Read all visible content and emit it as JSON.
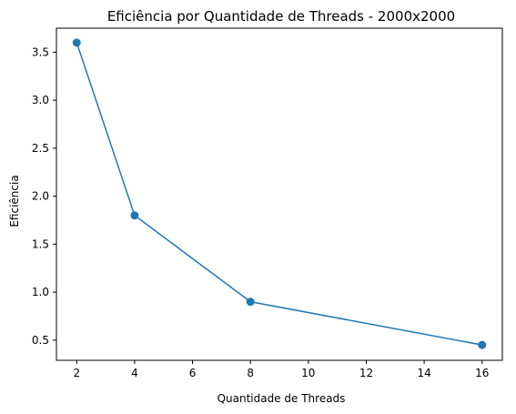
{
  "chart_data": {
    "type": "line",
    "title": "Eficiência por Quantidade de Threads - 2000x2000",
    "xlabel": "Quantidade de Threads",
    "ylabel": "Eficiência",
    "xlim": [
      1.3,
      16.7
    ],
    "ylim": [
      0.29,
      3.75
    ],
    "xticks": [
      2,
      4,
      6,
      8,
      10,
      12,
      14,
      16
    ],
    "yticks": [
      0.5,
      1.0,
      1.5,
      2.0,
      2.5,
      3.0,
      3.5
    ],
    "xtick_labels": [
      "2",
      "4",
      "6",
      "8",
      "10",
      "12",
      "14",
      "16"
    ],
    "ytick_labels": [
      "0.5",
      "1.0",
      "1.5",
      "2.0",
      "2.5",
      "3.0",
      "3.5"
    ],
    "grid": false,
    "series": [
      {
        "color": "#1f77b4",
        "marker": "circle",
        "x": [
          2,
          4,
          8,
          16
        ],
        "y": [
          3.6,
          1.8,
          0.9,
          0.45
        ]
      }
    ]
  }
}
